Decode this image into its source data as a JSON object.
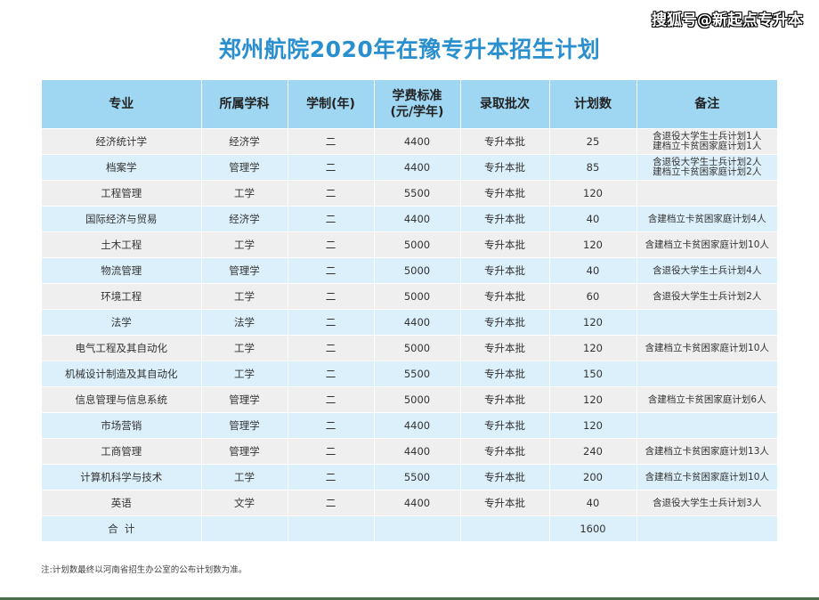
{
  "watermark": "搜狐号@新起点专升本",
  "title": "郑州航院2020年在豫专升本招生计划",
  "table": {
    "headers": {
      "major": "专业",
      "discipline": "所属学科",
      "years": "学制(年)",
      "tuition_line1": "学费标准",
      "tuition_line2": "(元/学年)",
      "batch": "录取批次",
      "quota": "计划数",
      "remarks": "备注"
    },
    "rows": [
      {
        "major": "经济统计学",
        "discipline": "经济学",
        "years": "二",
        "tuition": "4400",
        "batch": "专升本批",
        "quota": "25",
        "remark1": "含退役大学生士兵计划1人",
        "remark2": "建档立卡贫困家庭计划1人"
      },
      {
        "major": "档案学",
        "discipline": "管理学",
        "years": "二",
        "tuition": "4400",
        "batch": "专升本批",
        "quota": "85",
        "remark1": "含退役大学生士兵计划2人",
        "remark2": "建档立卡贫困家庭计划2人"
      },
      {
        "major": "工程管理",
        "discipline": "工学",
        "years": "二",
        "tuition": "5500",
        "batch": "专升本批",
        "quota": "120",
        "remark1": "",
        "remark2": ""
      },
      {
        "major": "国际经济与贸易",
        "discipline": "经济学",
        "years": "二",
        "tuition": "4400",
        "batch": "专升本批",
        "quota": "40",
        "remark1": "含建档立卡贫困家庭计划4人",
        "remark2": ""
      },
      {
        "major": "土木工程",
        "discipline": "工学",
        "years": "二",
        "tuition": "5000",
        "batch": "专升本批",
        "quota": "120",
        "remark1": "含建档立卡贫困家庭计划10人",
        "remark2": ""
      },
      {
        "major": "物流管理",
        "discipline": "管理学",
        "years": "二",
        "tuition": "5000",
        "batch": "专升本批",
        "quota": "40",
        "remark1": "含退役大学生士兵计划4人",
        "remark2": ""
      },
      {
        "major": "环境工程",
        "discipline": "工学",
        "years": "二",
        "tuition": "5000",
        "batch": "专升本批",
        "quota": "60",
        "remark1": "含退役大学生士兵计划2人",
        "remark2": ""
      },
      {
        "major": "法学",
        "discipline": "法学",
        "years": "二",
        "tuition": "4400",
        "batch": "专升本批",
        "quota": "120",
        "remark1": "",
        "remark2": ""
      },
      {
        "major": "电气工程及其自动化",
        "discipline": "工学",
        "years": "二",
        "tuition": "5000",
        "batch": "专升本批",
        "quota": "120",
        "remark1": "含建档立卡贫困家庭计划10人",
        "remark2": ""
      },
      {
        "major": "机械设计制造及其自动化",
        "discipline": "工学",
        "years": "二",
        "tuition": "5500",
        "batch": "专升本批",
        "quota": "150",
        "remark1": "",
        "remark2": ""
      },
      {
        "major": "信息管理与信息系统",
        "discipline": "管理学",
        "years": "二",
        "tuition": "5000",
        "batch": "专升本批",
        "quota": "120",
        "remark1": "含建档立卡贫困家庭计划6人",
        "remark2": ""
      },
      {
        "major": "市场营销",
        "discipline": "管理学",
        "years": "二",
        "tuition": "4400",
        "batch": "专升本批",
        "quota": "120",
        "remark1": "",
        "remark2": ""
      },
      {
        "major": "工商管理",
        "discipline": "管理学",
        "years": "二",
        "tuition": "4400",
        "batch": "专升本批",
        "quota": "240",
        "remark1": "含建档立卡贫困家庭计划13人",
        "remark2": ""
      },
      {
        "major": "计算机科学与技术",
        "discipline": "工学",
        "years": "二",
        "tuition": "5500",
        "batch": "专升本批",
        "quota": "200",
        "remark1": "含建档立卡贫困家庭计划10人",
        "remark2": ""
      },
      {
        "major": "英语",
        "discipline": "文学",
        "years": "二",
        "tuition": "4400",
        "batch": "专升本批",
        "quota": "40",
        "remark1": "含退役大学生士兵计划3人",
        "remark2": ""
      }
    ],
    "total": {
      "label": "合  计",
      "quota": "1600"
    }
  },
  "footnote": "注:计划数最终以河南省招生办公室的公布计划数为准。",
  "colors": {
    "title": "#2a8fcf",
    "header_bg": "#9fd6f2",
    "row_odd_bg": "#efefef",
    "row_even_bg": "#dcf0fb",
    "bottom_bar": "#4a6e4a"
  }
}
